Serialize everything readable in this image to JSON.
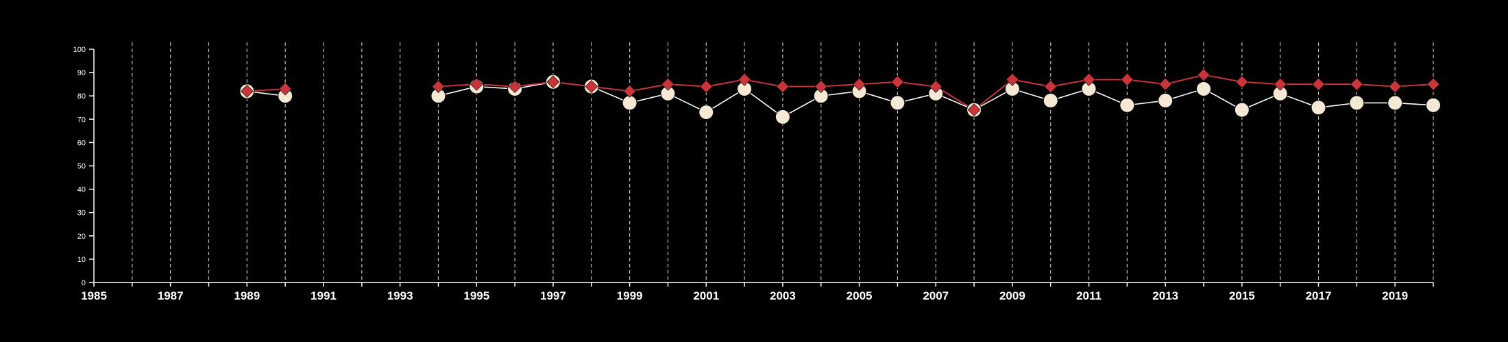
{
  "chart_data": {
    "type": "line",
    "title": "",
    "xlabel": "",
    "ylabel": "",
    "xlim": [
      1985,
      2020
    ],
    "ylim": [
      0,
      100
    ],
    "y_ticks": [
      0,
      10,
      20,
      30,
      40,
      50,
      60,
      70,
      80,
      90,
      100
    ],
    "x_ticks": [
      1985,
      1987,
      1989,
      1991,
      1993,
      1995,
      1997,
      1999,
      2001,
      2003,
      2005,
      2007,
      2009,
      2011,
      2013,
      2015,
      2017,
      2019
    ],
    "grid": "vertical dashed, every year",
    "legend": "none",
    "colors": {
      "background": "#000000",
      "axis": "#ffffff",
      "grid": "#bdbdbd",
      "series_white_marker": "#f5e9d6",
      "series_white_line": "#ffffff",
      "series_red": "#c8353a"
    },
    "series": [
      {
        "marker": "circle",
        "points": [
          [
            1989,
            82
          ],
          [
            1990,
            80
          ],
          [
            1994,
            80
          ],
          [
            1995,
            84
          ],
          [
            1996,
            83
          ],
          [
            1997,
            86
          ],
          [
            1998,
            84
          ],
          [
            1999,
            77
          ],
          [
            2000,
            81
          ],
          [
            2001,
            73
          ],
          [
            2002,
            83
          ],
          [
            2003,
            71
          ],
          [
            2004,
            80
          ],
          [
            2005,
            82
          ],
          [
            2006,
            77
          ],
          [
            2007,
            81
          ],
          [
            2008,
            74
          ],
          [
            2009,
            83
          ],
          [
            2010,
            78
          ],
          [
            2011,
            83
          ],
          [
            2012,
            76
          ],
          [
            2013,
            78
          ],
          [
            2014,
            83
          ],
          [
            2015,
            74
          ],
          [
            2016,
            81
          ],
          [
            2017,
            75
          ],
          [
            2018,
            77
          ],
          [
            2019,
            77
          ],
          [
            2020,
            76
          ]
        ]
      },
      {
        "marker": "diamond",
        "points": [
          [
            1989,
            82
          ],
          [
            1990,
            83
          ],
          [
            1994,
            84
          ],
          [
            1995,
            85
          ],
          [
            1996,
            84
          ],
          [
            1997,
            86
          ],
          [
            1998,
            84
          ],
          [
            1999,
            82
          ],
          [
            2000,
            85
          ],
          [
            2001,
            84
          ],
          [
            2002,
            87
          ],
          [
            2003,
            84
          ],
          [
            2004,
            84
          ],
          [
            2005,
            85
          ],
          [
            2006,
            86
          ],
          [
            2007,
            84
          ],
          [
            2008,
            74
          ],
          [
            2009,
            87
          ],
          [
            2010,
            84
          ],
          [
            2011,
            87
          ],
          [
            2012,
            87
          ],
          [
            2013,
            85
          ],
          [
            2014,
            89
          ],
          [
            2015,
            86
          ],
          [
            2016,
            85
          ],
          [
            2017,
            85
          ],
          [
            2018,
            85
          ],
          [
            2019,
            84
          ],
          [
            2020,
            85
          ]
        ]
      }
    ]
  }
}
